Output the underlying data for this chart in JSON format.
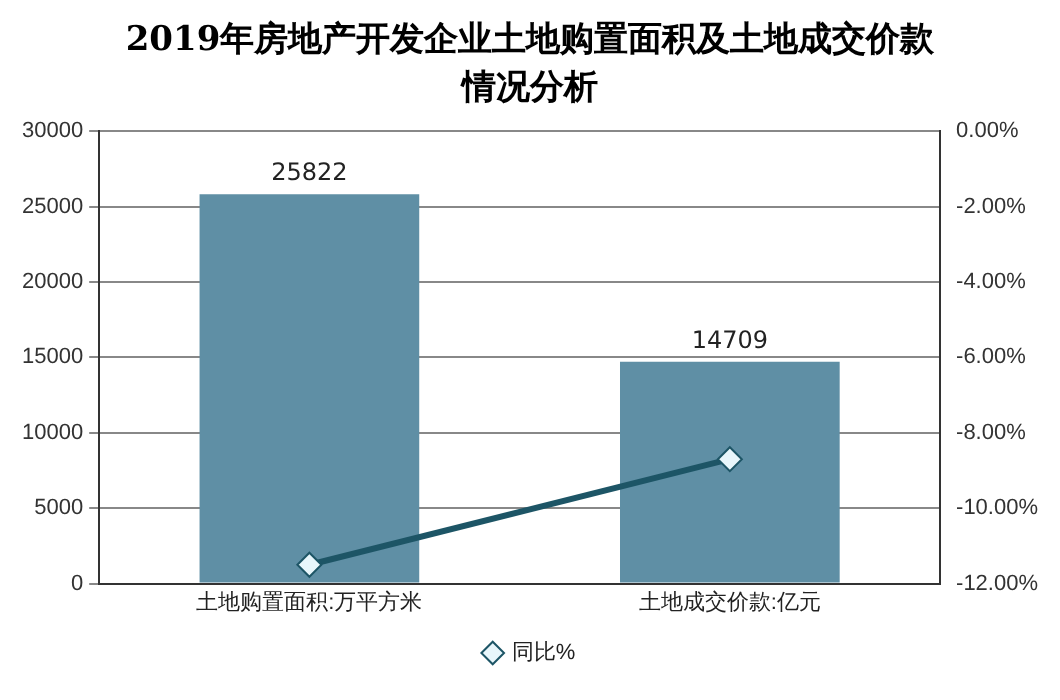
{
  "chart_data": {
    "type": "bar",
    "title": "2019年房地产开发企业土地购置面积及土地成交价款情况分析",
    "categories": [
      "土地购置面积:万平方米",
      "土地成交价款:亿元"
    ],
    "series": [
      {
        "color": "#5f8fa5",
        "values": [
          25822,
          14709
        ],
        "value_labels": [
          "25822",
          "14709"
        ]
      },
      {
        "type": "line",
        "name": "同比%",
        "color": "#1d5566",
        "axis": "y2",
        "values": [
          -11.5,
          -8.7
        ],
        "marker": "diamond"
      }
    ],
    "ylim": [
      0,
      30000
    ],
    "yticks": [
      0,
      5000,
      10000,
      15000,
      20000,
      25000,
      30000
    ],
    "y2lim": [
      -12,
      0
    ],
    "y2ticks": [
      {
        "value": 0,
        "label": "0.00%"
      },
      {
        "value": -2,
        "label": "-2.00%"
      },
      {
        "value": -4,
        "label": "-4.00%"
      },
      {
        "value": -6,
        "label": "-6.00%"
      },
      {
        "value": -8,
        "label": "-8.00%"
      },
      {
        "value": -10,
        "label": "-10.00%"
      },
      {
        "value": -12,
        "label": "-12.00%"
      }
    ],
    "grid": "y",
    "legend": "bottom"
  }
}
